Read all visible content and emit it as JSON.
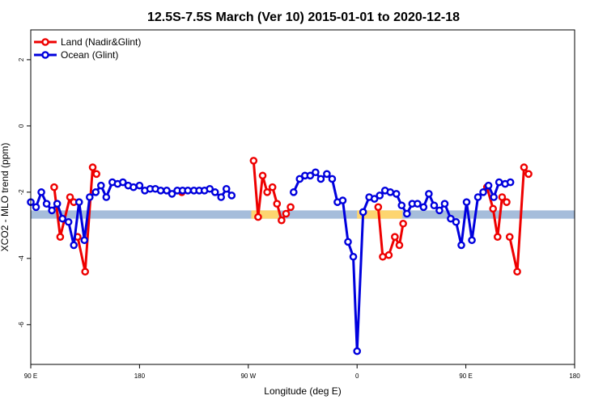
{
  "chart_data": {
    "type": "line",
    "title": "12.5S-7.5S March (Ver 10)   2015-01-01 to 2020-12-18",
    "xlabel": "Longitude (deg E)",
    "ylabel": "XCO2 - MLO trend (ppm)",
    "xlim": [
      90,
      450
    ],
    "ylim": [
      -7.2,
      2.9
    ],
    "x_ticks": [
      {
        "value": 90,
        "label": "90 E"
      },
      {
        "value": 162,
        "label": "180"
      },
      {
        "value": 234,
        "label": "90 W"
      },
      {
        "value": 306,
        "label": "0"
      },
      {
        "value": 378,
        "label": "90 E"
      },
      {
        "value": 450,
        "label": "180"
      }
    ],
    "y_ticks": [
      {
        "value": 2,
        "label": "2"
      },
      {
        "value": 0,
        "label": "0"
      },
      {
        "value": -2,
        "label": "-2"
      },
      {
        "value": -4,
        "label": "-4"
      },
      {
        "value": -6,
        "label": "-6"
      }
    ],
    "band": {
      "from": -2.55,
      "to": -2.8,
      "color": "#a6bddb"
    },
    "highlights": [
      {
        "from": 236,
        "to": 254,
        "color": "#fdd570"
      },
      {
        "from": 306,
        "to": 336,
        "color": "#fdd570"
      }
    ],
    "legend": {
      "position": "top-left"
    },
    "series": [
      {
        "name": "Land (Nadir&Glint)",
        "color": "#ee0000",
        "segments": [
          [
            [
              105.5,
              -1.85
            ],
            [
              109.5,
              -3.35
            ],
            [
              116,
              -2.15
            ],
            [
              118.5,
              -2.3
            ]
          ],
          [
            [
              121,
              -3.35
            ],
            [
              126,
              -4.4
            ],
            [
              131,
              -1.25
            ],
            [
              133.5,
              -1.45
            ]
          ],
          [
            [
              190,
              -2.0
            ]
          ],
          [
            [
              237.5,
              -1.05
            ],
            [
              240.5,
              -2.75
            ],
            [
              243.5,
              -1.5
            ],
            [
              246.5,
              -2.0
            ],
            [
              250,
              -1.85
            ],
            [
              253,
              -2.35
            ],
            [
              256,
              -2.85
            ],
            [
              259,
              -2.65
            ],
            [
              262,
              -2.45
            ]
          ],
          [
            [
              320,
              -2.45
            ],
            [
              323,
              -3.95
            ],
            [
              327,
              -3.9
            ],
            [
              331,
              -3.35
            ],
            [
              334,
              -3.6
            ],
            [
              336.5,
              -2.95
            ]
          ],
          [
            [
              392,
              -1.85
            ],
            [
              396,
              -2.5
            ],
            [
              399,
              -3.35
            ],
            [
              402,
              -2.15
            ],
            [
              405,
              -2.3
            ]
          ],
          [
            [
              407,
              -3.35
            ],
            [
              412,
              -4.4
            ],
            [
              416.5,
              -1.25
            ],
            [
              419.5,
              -1.45
            ]
          ]
        ]
      },
      {
        "name": "Ocean (Glint)",
        "color": "#0000dd",
        "segments": [
          [
            [
              90,
              -2.3
            ],
            [
              93.5,
              -2.45
            ],
            [
              97,
              -2.0
            ],
            [
              100.5,
              -2.35
            ],
            [
              104,
              -2.55
            ],
            [
              107.5,
              -2.35
            ],
            [
              111,
              -2.8
            ],
            [
              115,
              -2.9
            ],
            [
              118.5,
              -3.6
            ],
            [
              122,
              -2.3
            ],
            [
              125.5,
              -3.45
            ],
            [
              129,
              -2.15
            ],
            [
              133,
              -2.0
            ],
            [
              136.5,
              -1.8
            ],
            [
              140,
              -2.15
            ],
            [
              144,
              -1.7
            ],
            [
              147.5,
              -1.75
            ],
            [
              151,
              -1.7
            ],
            [
              154.5,
              -1.8
            ],
            [
              158,
              -1.85
            ],
            [
              162,
              -1.8
            ],
            [
              165.5,
              -1.95
            ],
            [
              169,
              -1.9
            ],
            [
              172.5,
              -1.9
            ],
            [
              176,
              -1.95
            ],
            [
              180,
              -1.95
            ],
            [
              183.5,
              -2.05
            ],
            [
              187,
              -1.95
            ],
            [
              190.5,
              -1.95
            ],
            [
              194,
              -1.95
            ],
            [
              198,
              -1.95
            ],
            [
              201.5,
              -1.95
            ],
            [
              205,
              -1.95
            ],
            [
              208.5,
              -1.9
            ],
            [
              212,
              -2.0
            ],
            [
              216,
              -2.15
            ],
            [
              219.5,
              -1.9
            ],
            [
              223,
              -2.1
            ]
          ],
          [
            [
              264,
              -2.0
            ],
            [
              268,
              -1.6
            ],
            [
              271.5,
              -1.5
            ],
            [
              275,
              -1.5
            ],
            [
              278.5,
              -1.4
            ],
            [
              282,
              -1.6
            ],
            [
              286,
              -1.45
            ],
            [
              289.5,
              -1.6
            ],
            [
              293,
              -2.3
            ],
            [
              296.5,
              -2.25
            ],
            [
              300,
              -3.5
            ],
            [
              303.5,
              -3.95
            ],
            [
              306,
              -6.8
            ],
            [
              310,
              -2.6
            ],
            [
              314,
              -2.15
            ],
            [
              317.5,
              -2.2
            ],
            [
              321,
              -2.1
            ],
            [
              324.5,
              -1.95
            ],
            [
              328,
              -2.0
            ],
            [
              332,
              -2.05
            ],
            [
              335.5,
              -2.4
            ],
            [
              339,
              -2.65
            ],
            [
              342.5,
              -2.35
            ],
            [
              346,
              -2.35
            ],
            [
              350,
              -2.45
            ],
            [
              353.5,
              -2.05
            ],
            [
              357,
              -2.4
            ],
            [
              360.5,
              -2.55
            ],
            [
              364,
              -2.35
            ],
            [
              368,
              -2.8
            ],
            [
              371.5,
              -2.9
            ],
            [
              375,
              -3.6
            ],
            [
              378.5,
              -2.3
            ],
            [
              382,
              -3.45
            ],
            [
              386,
              -2.15
            ],
            [
              389.5,
              -2.0
            ],
            [
              393,
              -1.8
            ],
            [
              396.5,
              -2.15
            ],
            [
              400,
              -1.7
            ],
            [
              404,
              -1.75
            ],
            [
              407.5,
              -1.7
            ]
          ]
        ]
      }
    ]
  }
}
